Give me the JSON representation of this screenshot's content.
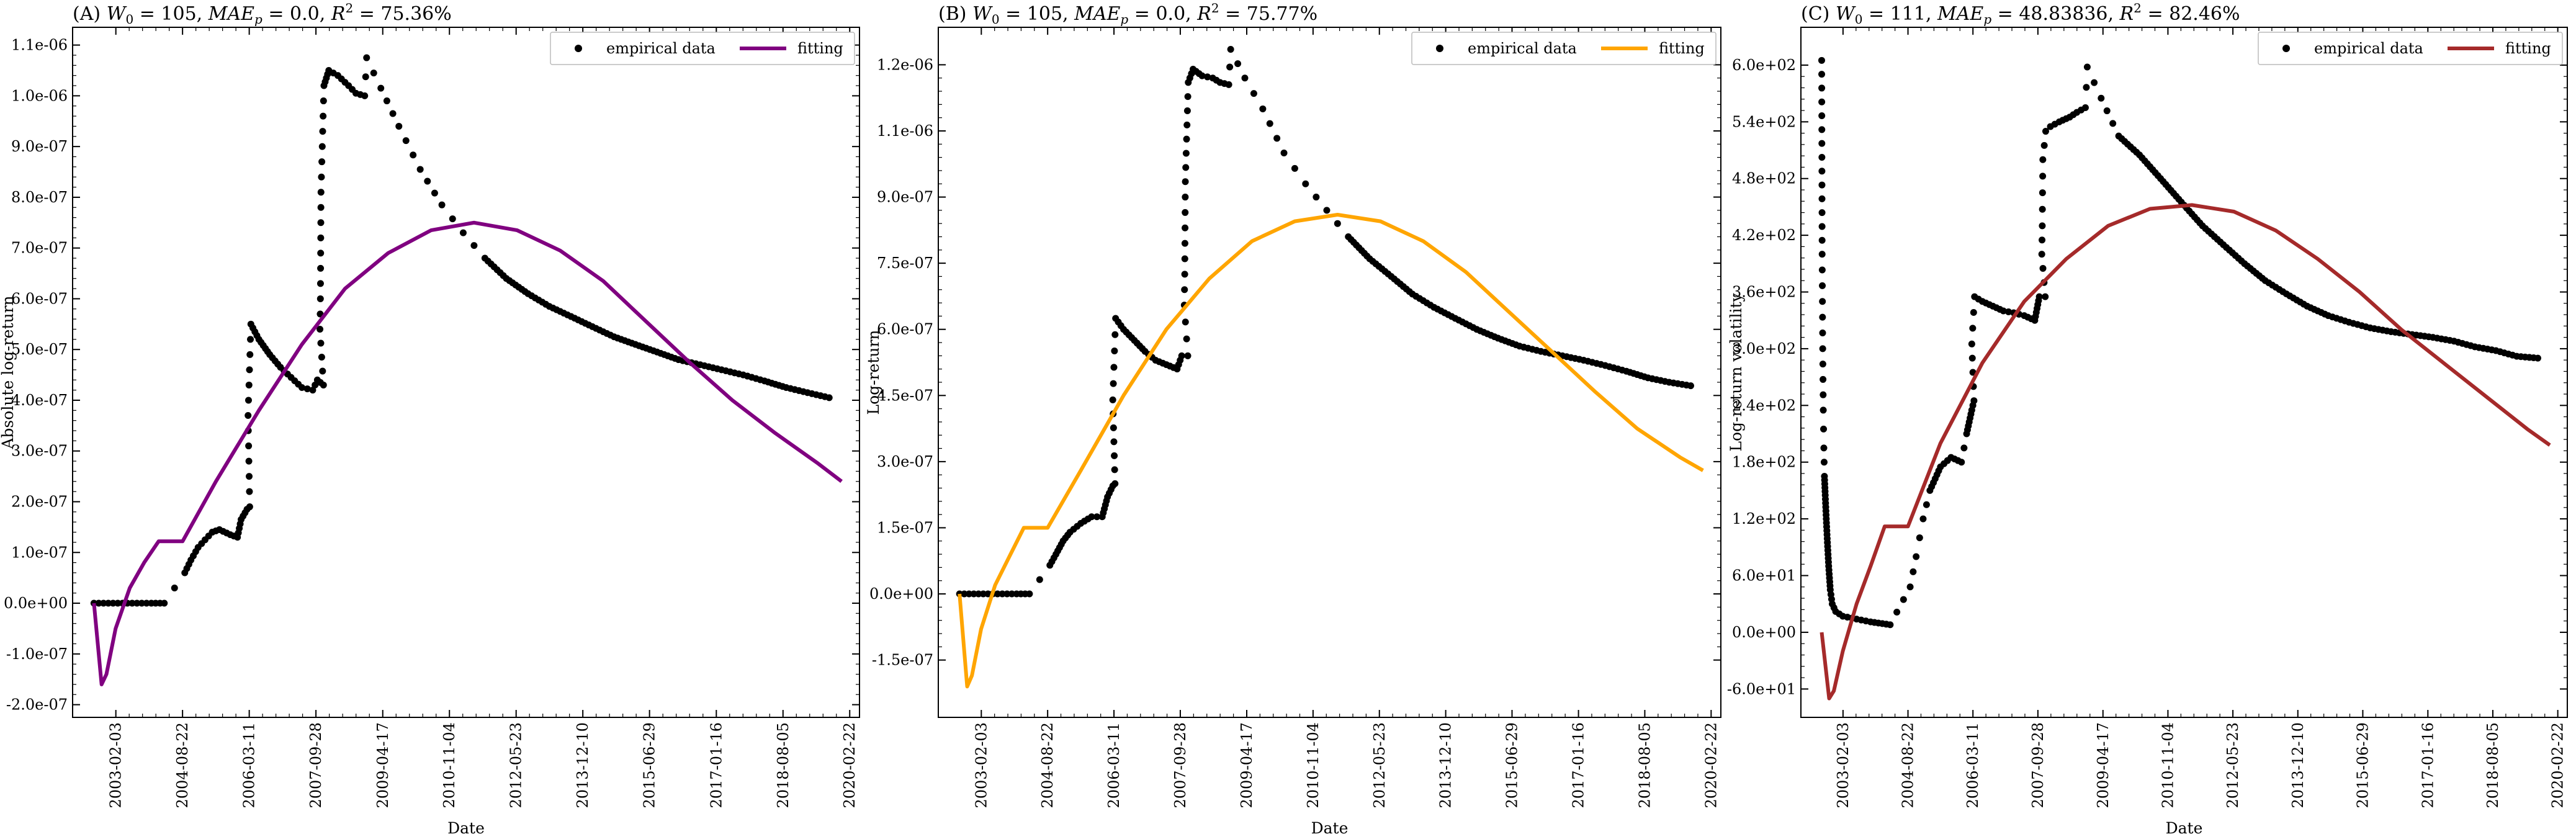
{
  "figure": {
    "x_axis_label": "Date",
    "date_ticks": [
      "2003-02-03",
      "2004-08-22",
      "2006-03-11",
      "2007-09-28",
      "2009-04-17",
      "2010-11-04",
      "2012-05-23",
      "2013-12-10",
      "2015-06-29",
      "2017-01-16",
      "2018-08-05",
      "2020-02-22"
    ],
    "legend_empirical": "empirical data",
    "legend_fitting": "fitting"
  },
  "chart_data": [
    {
      "type": "scatter+line",
      "panel": "A",
      "title": "(A) W0 = 105, MAEp = 0.0, R² = 75.36%",
      "title_parts": {
        "label": "(A)",
        "W0": "105",
        "MAEp": "0.0",
        "R2": "75.36%"
      },
      "xlabel": "Date",
      "ylabel": "Absolute log-return",
      "xlim": [
        "2002-02-01",
        "2020-05-15"
      ],
      "ylim": [
        -2.25e-07,
        1.135e-06
      ],
      "yticks": [
        -2e-07,
        -1e-07,
        0,
        1e-07,
        2e-07,
        3e-07,
        4e-07,
        5e-07,
        6e-07,
        7e-07,
        8e-07,
        9e-07,
        1e-06,
        1.1e-06
      ],
      "ytick_labels": [
        "-2.0e-07",
        "-1.0e-07",
        "0.0e+00",
        "1.0e-07",
        "2.0e-07",
        "3.0e-07",
        "4.0e-07",
        "5.0e-07",
        "6.0e-07",
        "7.0e-07",
        "8.0e-07",
        "9.0e-07",
        "1.0e-06",
        "1.1e-06"
      ],
      "fit_color": "#800080",
      "legend_position": "top-right",
      "empirical_points": [
        [
          "2002-08-01",
          0
        ],
        [
          "2002-12-01",
          0
        ],
        [
          "2003-04-01",
          0
        ],
        [
          "2003-08-01",
          0
        ],
        [
          "2003-12-01",
          0
        ],
        [
          "2004-03-20",
          0
        ],
        [
          "2004-09-10",
          6e-08
        ],
        [
          "2004-11-01",
          8.5e-08
        ],
        [
          "2005-01-01",
          1.1e-07
        ],
        [
          "2005-03-01",
          1.25e-07
        ],
        [
          "2005-05-01",
          1.4e-07
        ],
        [
          "2005-07-01",
          1.45e-07
        ],
        [
          "2005-10-01",
          1.35e-07
        ],
        [
          "2005-12-01",
          1.3e-07
        ],
        [
          "2006-01-01",
          1.65e-07
        ],
        [
          "2006-02-20",
          1.85e-07
        ],
        [
          "2006-03-15",
          1.9e-07
        ],
        [
          "2006-03-01",
          3.7e-07
        ],
        [
          "2006-03-25",
          5.5e-07
        ],
        [
          "2006-06-01",
          5.2e-07
        ],
        [
          "2006-09-01",
          4.9e-07
        ],
        [
          "2006-12-01",
          4.65e-07
        ],
        [
          "2007-03-01",
          4.45e-07
        ],
        [
          "2007-06-01",
          4.25e-07
        ],
        [
          "2007-09-01",
          4.2e-07
        ],
        [
          "2007-10-10",
          4.4e-07
        ],
        [
          "2007-12-01",
          4.3e-07
        ],
        [
          "2007-11-01",
          5.4e-07
        ],
        [
          "2007-11-05",
          6e-07
        ],
        [
          "2007-11-10",
          8.1e-07
        ],
        [
          "2007-12-05",
          1.02e-06
        ],
        [
          "2008-01-15",
          1.05e-06
        ],
        [
          "2008-04-01",
          1.04e-06
        ],
        [
          "2008-07-01",
          1.02e-06
        ],
        [
          "2008-09-01",
          1.005e-06
        ],
        [
          "2008-11-15",
          1e-06
        ],
        [
          "2008-12-01",
          1.075e-06
        ],
        [
          "2009-04-01",
          1.015e-06
        ],
        [
          "2009-09-01",
          9.4e-07
        ],
        [
          "2010-03-01",
          8.55e-07
        ],
        [
          "2010-09-01",
          7.85e-07
        ],
        [
          "2011-03-01",
          7.3e-07
        ],
        [
          "2011-09-01",
          6.8e-07
        ],
        [
          "2012-03-01",
          6.4e-07
        ],
        [
          "2012-09-01",
          6.1e-07
        ],
        [
          "2013-03-01",
          5.85e-07
        ],
        [
          "2013-09-01",
          5.65e-07
        ],
        [
          "2014-03-01",
          5.45e-07
        ],
        [
          "2014-09-01",
          5.25e-07
        ],
        [
          "2015-03-01",
          5.1e-07
        ],
        [
          "2015-09-01",
          4.95e-07
        ],
        [
          "2016-03-01",
          4.8e-07
        ],
        [
          "2016-09-01",
          4.7e-07
        ],
        [
          "2017-03-01",
          4.6e-07
        ],
        [
          "2017-09-01",
          4.5e-07
        ],
        [
          "2018-03-01",
          4.38e-07
        ],
        [
          "2018-09-01",
          4.25e-07
        ],
        [
          "2019-03-01",
          4.15e-07
        ],
        [
          "2019-09-01",
          4.05e-07
        ]
      ],
      "fit_points": [
        [
          "2002-08-01",
          0
        ],
        [
          "2002-10-05",
          -1.6e-07
        ],
        [
          "2002-11-15",
          -1.4e-07
        ],
        [
          "2003-02-01",
          -5e-08
        ],
        [
          "2003-06-01",
          3e-08
        ],
        [
          "2003-10-01",
          8e-08
        ],
        [
          "2004-02-01",
          1.22e-07
        ],
        [
          "2004-08-01",
          1.22e-07
        ],
        [
          "2004-08-22",
          1.22e-07
        ],
        [
          "2005-06-01",
          2.4e-07
        ],
        [
          "2006-06-01",
          3.8e-07
        ],
        [
          "2007-06-01",
          5.1e-07
        ],
        [
          "2008-06-01",
          6.2e-07
        ],
        [
          "2009-06-01",
          6.9e-07
        ],
        [
          "2010-06-01",
          7.35e-07
        ],
        [
          "2011-06-01",
          7.5e-07
        ],
        [
          "2012-06-01",
          7.35e-07
        ],
        [
          "2013-06-01",
          6.95e-07
        ],
        [
          "2014-06-01",
          6.35e-07
        ],
        [
          "2015-06-01",
          5.55e-07
        ],
        [
          "2016-06-01",
          4.75e-07
        ],
        [
          "2017-06-01",
          4e-07
        ],
        [
          "2018-06-01",
          3.35e-07
        ],
        [
          "2019-06-01",
          2.75e-07
        ],
        [
          "2019-12-15",
          2.4e-07
        ]
      ]
    },
    {
      "type": "scatter+line",
      "panel": "B",
      "title": "(B) W0 = 105, MAEp = 0.0, R² = 75.77%",
      "title_parts": {
        "label": "(B)",
        "W0": "105",
        "MAEp": "0.0",
        "R2": "75.77%"
      },
      "xlabel": "Date",
      "ylabel": "Log-return",
      "xlim": [
        "2002-02-01",
        "2020-05-15"
      ],
      "ylim": [
        -2.8e-07,
        1.285e-06
      ],
      "yticks": [
        -1.5e-07,
        0,
        1.5e-07,
        3e-07,
        4.5e-07,
        6e-07,
        7.5e-07,
        9e-07,
        1.05e-06,
        1.2e-06
      ],
      "ytick_labels": [
        "-1.5e-07",
        "0.0e+00",
        "1.5e-07",
        "3.0e-07",
        "4.5e-07",
        "6.0e-07",
        "7.5e-07",
        "9.0e-07",
        "1.1e-06",
        "1.2e-06"
      ],
      "fit_color": "#FFA500",
      "legend_position": "top-right",
      "empirical_points": [
        [
          "2002-08-01",
          0
        ],
        [
          "2002-12-01",
          0
        ],
        [
          "2003-04-01",
          0
        ],
        [
          "2003-08-01",
          0
        ],
        [
          "2003-12-01",
          0
        ],
        [
          "2004-03-20",
          0
        ],
        [
          "2004-09-10",
          6.5e-08
        ],
        [
          "2004-11-01",
          9e-08
        ],
        [
          "2005-01-01",
          1.2e-07
        ],
        [
          "2005-03-01",
          1.4e-07
        ],
        [
          "2005-06-01",
          1.6e-07
        ],
        [
          "2005-09-01",
          1.75e-07
        ],
        [
          "2005-12-01",
          1.75e-07
        ],
        [
          "2006-01-15",
          2.2e-07
        ],
        [
          "2006-03-01",
          2.45e-07
        ],
        [
          "2006-03-20",
          2.5e-07
        ],
        [
          "2006-03-01",
          4.4e-07
        ],
        [
          "2006-03-25",
          6.25e-07
        ],
        [
          "2006-06-01",
          6e-07
        ],
        [
          "2006-09-01",
          5.75e-07
        ],
        [
          "2006-12-01",
          5.5e-07
        ],
        [
          "2007-03-01",
          5.3e-07
        ],
        [
          "2007-06-01",
          5.2e-07
        ],
        [
          "2007-09-01",
          5.1e-07
        ],
        [
          "2007-10-10",
          5.4e-07
        ],
        [
          "2007-12-01",
          5.4e-07
        ],
        [
          "2007-11-01",
          6.55e-07
        ],
        [
          "2007-11-05",
          7.25e-07
        ],
        [
          "2007-11-10",
          9.35e-07
        ],
        [
          "2007-12-05",
          1.16e-06
        ],
        [
          "2008-01-15",
          1.19e-06
        ],
        [
          "2008-04-01",
          1.175e-06
        ],
        [
          "2008-07-01",
          1.17e-06
        ],
        [
          "2008-09-01",
          1.16e-06
        ],
        [
          "2008-11-15",
          1.155e-06
        ],
        [
          "2008-12-01",
          1.235e-06
        ],
        [
          "2009-04-01",
          1.17e-06
        ],
        [
          "2009-09-01",
          1.1e-06
        ],
        [
          "2010-03-01",
          1e-06
        ],
        [
          "2010-09-01",
          9.3e-07
        ],
        [
          "2011-03-01",
          8.7e-07
        ],
        [
          "2011-09-01",
          8.1e-07
        ],
        [
          "2012-03-01",
          7.6e-07
        ],
        [
          "2012-09-01",
          7.2e-07
        ],
        [
          "2013-03-01",
          6.8e-07
        ],
        [
          "2013-09-01",
          6.5e-07
        ],
        [
          "2014-03-01",
          6.25e-07
        ],
        [
          "2014-09-01",
          6e-07
        ],
        [
          "2015-03-01",
          5.8e-07
        ],
        [
          "2015-09-01",
          5.62e-07
        ],
        [
          "2016-03-01",
          5.5e-07
        ],
        [
          "2016-09-01",
          5.4e-07
        ],
        [
          "2017-03-01",
          5.3e-07
        ],
        [
          "2017-09-01",
          5.18e-07
        ],
        [
          "2018-03-01",
          5.05e-07
        ],
        [
          "2018-09-01",
          4.9e-07
        ],
        [
          "2019-03-01",
          4.8e-07
        ],
        [
          "2019-09-01",
          4.72e-07
        ]
      ],
      "fit_points": [
        [
          "2002-08-01",
          0
        ],
        [
          "2002-10-05",
          -2.1e-07
        ],
        [
          "2002-11-15",
          -1.85e-07
        ],
        [
          "2003-02-01",
          -8e-08
        ],
        [
          "2003-06-01",
          2e-08
        ],
        [
          "2003-10-01",
          8.5e-08
        ],
        [
          "2004-02-01",
          1.5e-07
        ],
        [
          "2004-08-01",
          1.5e-07
        ],
        [
          "2004-08-22",
          1.5e-07
        ],
        [
          "2005-06-01",
          2.8e-07
        ],
        [
          "2006-06-01",
          4.5e-07
        ],
        [
          "2007-06-01",
          6e-07
        ],
        [
          "2008-06-01",
          7.15e-07
        ],
        [
          "2009-06-01",
          8e-07
        ],
        [
          "2010-06-01",
          8.45e-07
        ],
        [
          "2011-06-01",
          8.6e-07
        ],
        [
          "2012-06-01",
          8.45e-07
        ],
        [
          "2013-06-01",
          8e-07
        ],
        [
          "2014-06-01",
          7.3e-07
        ],
        [
          "2015-06-01",
          6.4e-07
        ],
        [
          "2016-06-01",
          5.5e-07
        ],
        [
          "2017-06-01",
          4.6e-07
        ],
        [
          "2018-06-01",
          3.75e-07
        ],
        [
          "2019-06-01",
          3.1e-07
        ],
        [
          "2019-12-15",
          2.8e-07
        ]
      ]
    },
    {
      "type": "scatter+line",
      "panel": "C",
      "title": "(C) W0 = 111, MAEp = 48.83836, R² = 82.46%",
      "title_parts": {
        "label": "(C)",
        "W0": "111",
        "MAEp": "48.83836",
        "R2": "82.46%"
      },
      "xlabel": "Date",
      "ylabel": "Log-return volatility",
      "xlim": [
        "2002-02-01",
        "2020-05-15"
      ],
      "ylim": [
        -90,
        640
      ],
      "yticks": [
        -60,
        0,
        60,
        120,
        180,
        240,
        300,
        360,
        420,
        480,
        540,
        600
      ],
      "ytick_labels": [
        "-6.0e+01",
        "0.0e+00",
        "6.0e+01",
        "1.2e+02",
        "1.8e+02",
        "2.4e+02",
        "3.0e+02",
        "3.6e+02",
        "4.2e+02",
        "4.8e+02",
        "5.4e+02",
        "6.0e+02"
      ],
      "fit_color": "#A52A2A",
      "legend_position": "top-right",
      "empirical_points": [
        [
          "2002-08-01",
          605
        ],
        [
          "2002-08-05",
          400
        ],
        [
          "2002-08-10",
          300
        ],
        [
          "2002-08-15",
          235
        ],
        [
          "2002-08-20",
          195
        ],
        [
          "2002-08-25",
          165
        ],
        [
          "2002-09-01",
          145
        ],
        [
          "2002-09-10",
          120
        ],
        [
          "2002-09-20",
          95
        ],
        [
          "2002-10-01",
          70
        ],
        [
          "2002-10-15",
          45
        ],
        [
          "2002-11-01",
          30
        ],
        [
          "2002-12-01",
          22
        ],
        [
          "2003-02-01",
          17
        ],
        [
          "2003-06-01",
          14
        ],
        [
          "2003-10-01",
          11
        ],
        [
          "2004-03-20",
          8
        ],
        [
          "2004-09-10",
          48
        ],
        [
          "2004-11-01",
          80
        ],
        [
          "2005-01-01",
          120
        ],
        [
          "2005-03-01",
          150
        ],
        [
          "2005-06-01",
          175
        ],
        [
          "2005-09-01",
          185
        ],
        [
          "2005-12-01",
          180
        ],
        [
          "2006-01-15",
          210
        ],
        [
          "2006-03-01",
          235
        ],
        [
          "2006-03-20",
          245
        ],
        [
          "2006-03-01",
          305
        ],
        [
          "2006-03-25",
          355
        ],
        [
          "2006-06-01",
          350
        ],
        [
          "2006-09-01",
          345
        ],
        [
          "2006-12-01",
          340
        ],
        [
          "2007-03-01",
          338
        ],
        [
          "2007-06-01",
          335
        ],
        [
          "2007-09-01",
          330
        ],
        [
          "2007-10-10",
          355
        ],
        [
          "2007-12-01",
          355
        ],
        [
          "2007-11-01",
          400
        ],
        [
          "2007-11-05",
          430
        ],
        [
          "2007-11-10",
          500
        ],
        [
          "2007-12-05",
          530
        ],
        [
          "2008-01-15",
          535
        ],
        [
          "2008-04-01",
          540
        ],
        [
          "2008-07-01",
          545
        ],
        [
          "2008-09-01",
          550
        ],
        [
          "2008-11-15",
          555
        ],
        [
          "2008-12-01",
          598
        ],
        [
          "2009-04-01",
          565
        ],
        [
          "2009-09-01",
          525
        ],
        [
          "2010-03-01",
          505
        ],
        [
          "2010-09-01",
          480
        ],
        [
          "2011-03-01",
          455
        ],
        [
          "2011-09-01",
          430
        ],
        [
          "2012-03-01",
          410
        ],
        [
          "2012-09-01",
          390
        ],
        [
          "2013-03-01",
          372
        ],
        [
          "2013-09-01",
          358
        ],
        [
          "2014-03-01",
          345
        ],
        [
          "2014-09-01",
          335
        ],
        [
          "2015-03-01",
          328
        ],
        [
          "2015-09-01",
          322
        ],
        [
          "2016-03-01",
          318
        ],
        [
          "2016-09-01",
          315
        ],
        [
          "2017-03-01",
          312
        ],
        [
          "2017-09-01",
          308
        ],
        [
          "2018-03-01",
          302
        ],
        [
          "2018-09-01",
          298
        ],
        [
          "2019-03-01",
          292
        ],
        [
          "2019-09-01",
          290
        ]
      ],
      "fit_points": [
        [
          "2002-08-01",
          0
        ],
        [
          "2002-10-05",
          -70
        ],
        [
          "2002-11-15",
          -62
        ],
        [
          "2003-02-01",
          -20
        ],
        [
          "2003-06-01",
          30
        ],
        [
          "2003-10-01",
          70
        ],
        [
          "2004-02-01",
          112
        ],
        [
          "2004-08-01",
          112
        ],
        [
          "2004-08-22",
          112
        ],
        [
          "2005-06-01",
          200
        ],
        [
          "2006-06-01",
          285
        ],
        [
          "2007-06-01",
          350
        ],
        [
          "2008-06-01",
          395
        ],
        [
          "2009-06-01",
          430
        ],
        [
          "2010-06-01",
          448
        ],
        [
          "2011-06-01",
          452
        ],
        [
          "2012-06-01",
          445
        ],
        [
          "2013-06-01",
          425
        ],
        [
          "2014-06-01",
          395
        ],
        [
          "2015-06-01",
          360
        ],
        [
          "2016-06-01",
          320
        ],
        [
          "2017-06-01",
          285
        ],
        [
          "2018-06-01",
          250
        ],
        [
          "2019-06-01",
          215
        ],
        [
          "2019-12-15",
          198
        ]
      ]
    }
  ]
}
